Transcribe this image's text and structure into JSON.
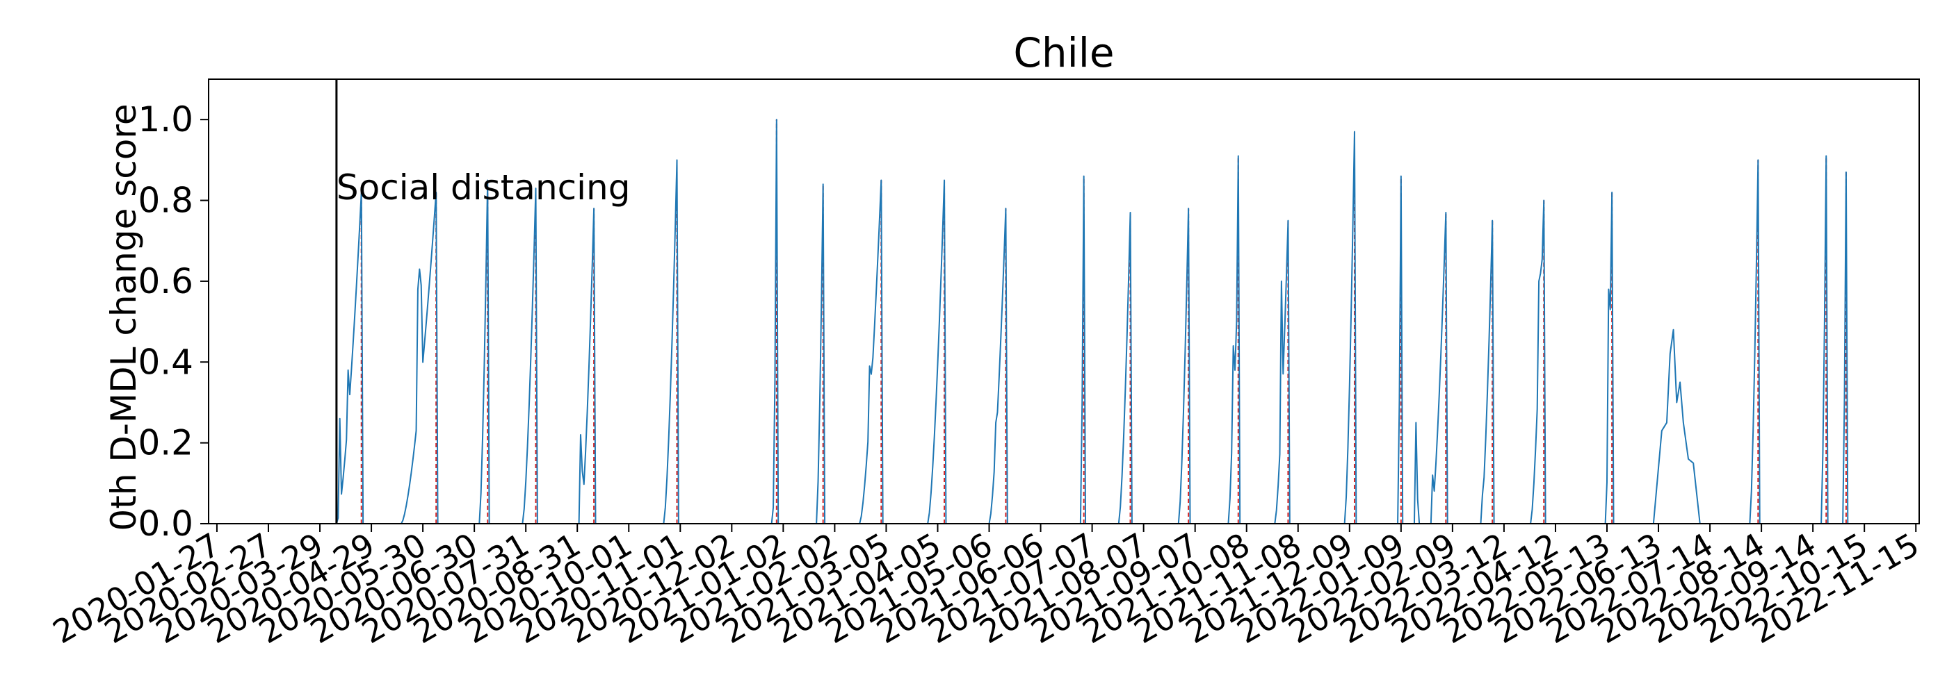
{
  "chart_data": {
    "type": "line",
    "title": "Chile",
    "xlabel": "",
    "ylabel": "0th D-MDL change score",
    "x_tick_labels": [
      "2020-01-27",
      "2020-02-27",
      "2020-03-29",
      "2020-04-29",
      "2020-05-30",
      "2020-06-30",
      "2020-07-31",
      "2020-08-31",
      "2020-10-01",
      "2020-11-01",
      "2020-12-02",
      "2021-01-02",
      "2021-02-02",
      "2021-03-05",
      "2021-04-05",
      "2021-05-06",
      "2021-06-06",
      "2021-07-07",
      "2021-08-07",
      "2021-09-07",
      "2021-10-08",
      "2021-11-08",
      "2021-12-09",
      "2022-01-09",
      "2022-02-09",
      "2022-03-12",
      "2022-04-12",
      "2022-05-13",
      "2022-06-13",
      "2022-07-14",
      "2022-08-14",
      "2022-09-14",
      "2022-10-15",
      "2022-11-15"
    ],
    "y_ticks": [
      0.0,
      0.2,
      0.4,
      0.6,
      0.8,
      1.0
    ],
    "y_tick_labels": [
      "0.0",
      "0.2",
      "0.4",
      "0.6",
      "0.8",
      "1.0"
    ],
    "xlim_days": [
      -5,
      1025
    ],
    "ylim": [
      0,
      1.1
    ],
    "grid": false,
    "line_color": "#1f77b4",
    "alarm_color": "#d62728",
    "event_line_color": "#000000",
    "event": {
      "label": "Social distancing",
      "day": 72
    },
    "peaks": [
      {
        "day": 87,
        "peak": 0.82,
        "rise": 14,
        "shape": [
          [
            -13,
            0.26
          ],
          [
            -8,
            0.38
          ]
        ]
      },
      {
        "day": 132,
        "peak": 0.82,
        "rise": 20,
        "shape": [
          [
            -11,
            0.58
          ],
          [
            -10,
            0.63
          ],
          [
            -9,
            0.59
          ]
        ]
      },
      {
        "day": 163,
        "peak": 0.85,
        "rise": 4,
        "shape": []
      },
      {
        "day": 192,
        "peak": 0.83,
        "rise": 7,
        "shape": []
      },
      {
        "day": 227,
        "peak": 0.78,
        "rise": 7,
        "shape": [
          [
            -8,
            0.22
          ],
          [
            -7,
            0.13
          ]
        ]
      },
      {
        "day": 277,
        "peak": 0.9,
        "rise": 7,
        "shape": []
      },
      {
        "day": 337,
        "peak": 1.0,
        "rise": 1,
        "shape": []
      },
      {
        "day": 365,
        "peak": 0.84,
        "rise": 3,
        "shape": []
      },
      {
        "day": 400,
        "peak": 0.85,
        "rise": 12,
        "shape": [
          [
            -7,
            0.39
          ],
          [
            -6,
            0.37
          ]
        ]
      },
      {
        "day": 438,
        "peak": 0.85,
        "rise": 9,
        "shape": []
      },
      {
        "day": 475,
        "peak": 0.78,
        "rise": 9,
        "shape": [
          [
            -6,
            0.25
          ]
        ]
      },
      {
        "day": 522,
        "peak": 0.86,
        "rise": 1,
        "shape": []
      },
      {
        "day": 550,
        "peak": 0.77,
        "rise": 6,
        "shape": []
      },
      {
        "day": 585,
        "peak": 0.78,
        "rise": 5,
        "shape": []
      },
      {
        "day": 615,
        "peak": 0.91,
        "rise": 5,
        "shape": [
          [
            -3,
            0.44
          ],
          [
            -2,
            0.38
          ],
          [
            -1,
            0.5
          ]
        ]
      },
      {
        "day": 645,
        "peak": 0.75,
        "rise": 7,
        "shape": [
          [
            -4,
            0.6
          ]
        ]
      },
      {
        "day": 685,
        "peak": 0.97,
        "rise": 5,
        "shape": []
      },
      {
        "day": 713,
        "peak": 0.86,
        "rise": 1,
        "shape": []
      },
      {
        "day": 740,
        "peak": 0.77,
        "rise": 8,
        "shape": [
          [
            -8,
            0.12
          ]
        ]
      },
      {
        "day": 768,
        "peak": 0.75,
        "rise": 6,
        "shape": []
      },
      {
        "day": 799,
        "peak": 0.8,
        "rise": 7,
        "shape": [
          [
            -3,
            0.6
          ],
          [
            -2,
            0.62
          ]
        ]
      },
      {
        "day": 840,
        "peak": 0.82,
        "rise": 3,
        "shape": [
          [
            -2,
            0.58
          ],
          [
            -1,
            0.53
          ]
        ]
      },
      {
        "day": 928,
        "peak": 0.9,
        "rise": 4,
        "shape": []
      },
      {
        "day": 969,
        "peak": 0.91,
        "rise": 2,
        "shape": []
      },
      {
        "day": 981,
        "peak": 0.87,
        "rise": 1,
        "shape": []
      }
    ],
    "blips": [
      {
        "day": 113,
        "value": 0.02
      },
      {
        "day": 120,
        "value": 0.09
      },
      {
        "day": 335,
        "value": 0.04
      },
      {
        "day": 722,
        "value": 0.25
      },
      {
        "day": 723,
        "value": 0.06
      },
      {
        "day": 762,
        "value": 0.07
      },
      {
        "day": 794,
        "value": 0.02
      }
    ],
    "bump": {
      "points": [
        [
          865,
          0
        ],
        [
          870,
          0.23
        ],
        [
          873,
          0.25
        ],
        [
          875,
          0.42
        ],
        [
          877,
          0.48
        ],
        [
          879,
          0.3
        ],
        [
          881,
          0.35
        ],
        [
          883,
          0.25
        ],
        [
          886,
          0.16
        ],
        [
          889,
          0.15
        ],
        [
          893,
          0
        ]
      ]
    },
    "alarm_days": [
      87,
      132,
      163,
      192,
      227,
      277,
      337,
      365,
      400,
      438,
      475,
      522,
      550,
      585,
      615,
      645,
      685,
      713,
      740,
      768,
      799,
      840,
      928,
      969,
      981
    ]
  }
}
